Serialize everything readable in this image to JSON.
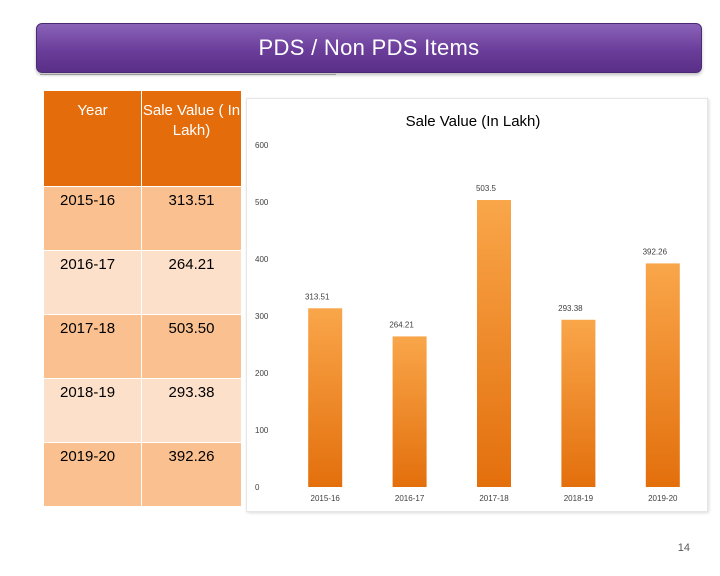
{
  "slide": {
    "title": "PDS / Non PDS Items",
    "page_number": "14"
  },
  "table": {
    "headers": [
      "Year",
      "Sale Value ( In Lakh)"
    ],
    "rows": [
      {
        "year": "2015-16",
        "value": "313.51"
      },
      {
        "year": "2016-17",
        "value": "264.21"
      },
      {
        "year": "2017-18",
        "value": "503.50"
      },
      {
        "year": "2018-19",
        "value": "293.38"
      },
      {
        "year": "2019-20",
        "value": "392.26"
      }
    ]
  },
  "chart_data": {
    "type": "bar",
    "title": "Sale Value (In Lakh)",
    "categories": [
      "2015-16",
      "2016-17",
      "2017-18",
      "2018-19",
      "2019-20"
    ],
    "values": [
      313.51,
      264.21,
      503.5,
      293.38,
      392.26
    ],
    "data_labels": [
      "313.51",
      "264.21",
      "503.5",
      "293.38",
      "392.26"
    ],
    "ylim": [
      0,
      600
    ],
    "yticks": [
      0,
      100,
      200,
      300,
      400,
      500,
      600
    ],
    "xlabel": "",
    "ylabel": "",
    "grid": false,
    "legend": "none",
    "colors": {
      "bar_top": "#f9a64a",
      "bar_bottom": "#e36f0c"
    }
  }
}
